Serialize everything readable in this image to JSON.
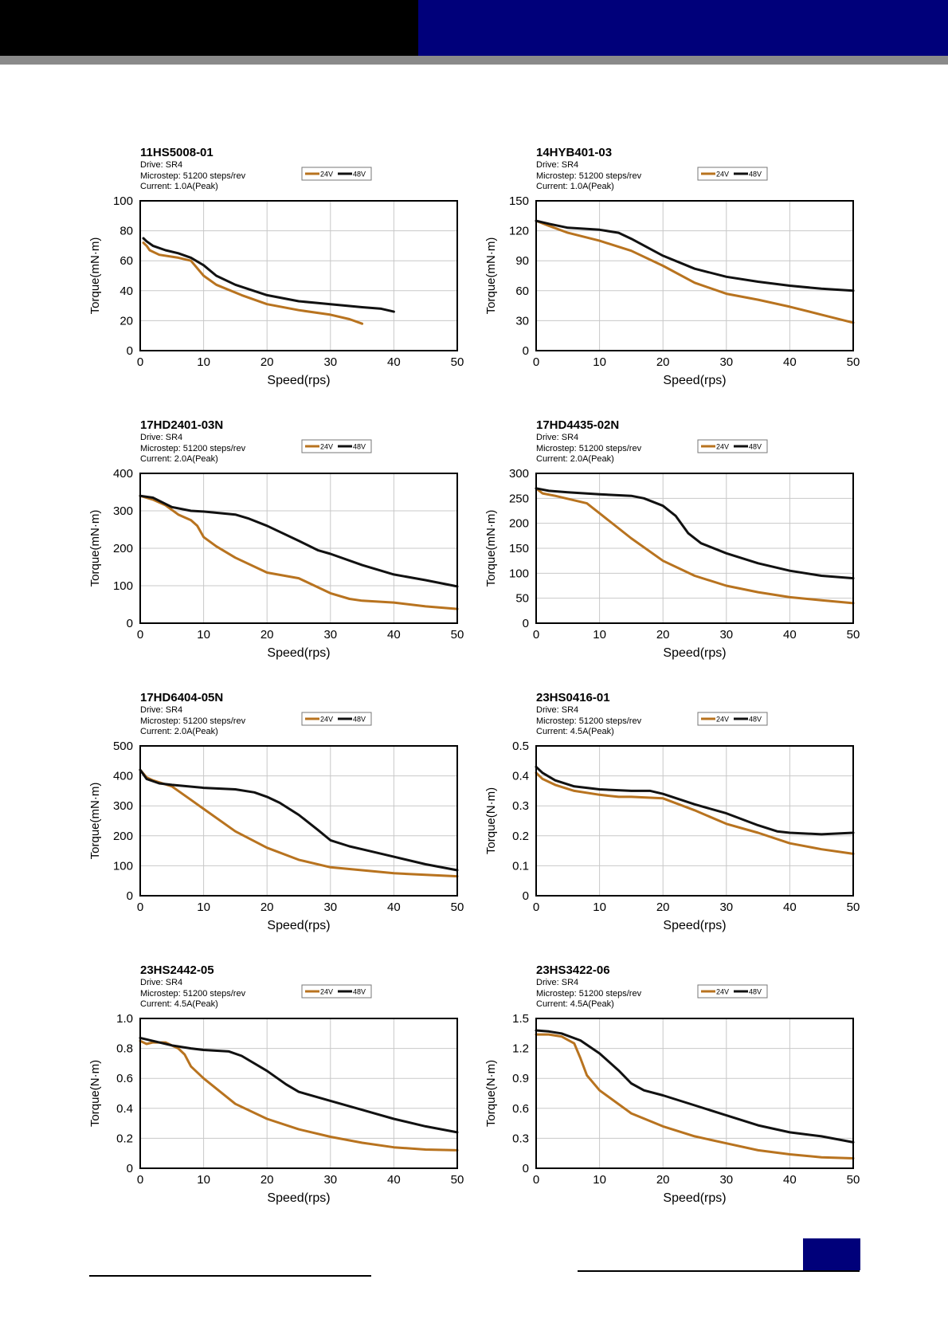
{
  "colors": {
    "v24": "#b8731f",
    "v48": "#111111",
    "grid": "#c8c8c8",
    "header_black": "#000000",
    "header_blue": "#00007a"
  },
  "legend": {
    "v24": "24V",
    "v48": "48V"
  },
  "chart_data": [
    {
      "type": "line",
      "title": "11HS5008-01",
      "drive": "Drive: SR4",
      "microstep": "Microstep: 51200 steps/rev",
      "current": "Current: 1.0A(Peak)",
      "xlabel": "Speed(rps)",
      "ylabel": "Torque(mN·m)",
      "xlim": [
        0,
        50
      ],
      "ylim": [
        0,
        100
      ],
      "xticks": [
        "0",
        "10",
        "20",
        "30",
        "40",
        "50"
      ],
      "yticks": [
        "0",
        "20",
        "40",
        "60",
        "80",
        "100"
      ],
      "series": [
        {
          "name": "24V",
          "x": [
            0.5,
            1,
            1.5,
            3,
            6,
            8,
            10,
            12,
            16,
            20,
            25,
            30,
            33,
            35
          ],
          "y": [
            72,
            70,
            67,
            64,
            62,
            60,
            50,
            44,
            37,
            31,
            27,
            24,
            21,
            18
          ]
        },
        {
          "name": "48V",
          "x": [
            0.5,
            1,
            2,
            4,
            6,
            8,
            10,
            12,
            15,
            20,
            25,
            30,
            35,
            38,
            40
          ],
          "y": [
            75,
            73,
            70,
            67,
            65,
            62,
            57,
            50,
            44,
            37,
            33,
            31,
            29,
            28,
            26
          ]
        }
      ]
    },
    {
      "type": "line",
      "title": "14HYB401-03",
      "drive": "Drive: SR4",
      "microstep": "Microstep: 51200 steps/rev",
      "current": "Current: 1.0A(Peak)",
      "xlabel": "Speed(rps)",
      "ylabel": "Torque(mN·m)",
      "xlim": [
        0,
        50
      ],
      "ylim": [
        0,
        150
      ],
      "xticks": [
        "0",
        "10",
        "20",
        "30",
        "40",
        "50"
      ],
      "yticks": [
        "0",
        "30",
        "60",
        "90",
        "120",
        "150"
      ],
      "series": [
        {
          "name": "24V",
          "x": [
            0,
            2,
            5,
            10,
            15,
            20,
            25,
            30,
            35,
            40,
            45,
            50
          ],
          "y": [
            130,
            125,
            118,
            110,
            100,
            85,
            68,
            57,
            51,
            44,
            36,
            28
          ]
        },
        {
          "name": "48V",
          "x": [
            0,
            2,
            5,
            10,
            13,
            15,
            20,
            25,
            30,
            35,
            40,
            45,
            50
          ],
          "y": [
            130,
            127,
            123,
            121,
            118,
            112,
            95,
            82,
            74,
            69,
            65,
            62,
            60
          ]
        }
      ]
    },
    {
      "type": "line",
      "title": "17HD2401-03N",
      "drive": "Drive: SR4",
      "microstep": "Microstep: 51200 steps/rev",
      "current": "Current: 2.0A(Peak)",
      "xlabel": "Speed(rps)",
      "ylabel": "Torque(mN·m)",
      "xlim": [
        0,
        50
      ],
      "ylim": [
        0,
        400
      ],
      "xticks": [
        "0",
        "10",
        "20",
        "30",
        "40",
        "50"
      ],
      "yticks": [
        "0",
        "100",
        "200",
        "300",
        "400"
      ],
      "series": [
        {
          "name": "24V",
          "x": [
            0,
            2,
            4,
            6,
            8,
            9,
            10,
            12,
            15,
            20,
            25,
            30,
            33,
            35,
            40,
            45,
            50
          ],
          "y": [
            340,
            330,
            315,
            290,
            275,
            260,
            230,
            205,
            175,
            135,
            120,
            80,
            65,
            60,
            55,
            45,
            38
          ]
        },
        {
          "name": "48V",
          "x": [
            0,
            2,
            5,
            8,
            10,
            15,
            17,
            20,
            25,
            28,
            30,
            35,
            40,
            45,
            50
          ],
          "y": [
            340,
            335,
            310,
            300,
            298,
            290,
            280,
            260,
            220,
            195,
            185,
            155,
            130,
            115,
            98
          ]
        }
      ]
    },
    {
      "type": "line",
      "title": "17HD4435-02N",
      "drive": "Drive: SR4",
      "microstep": "Microstep: 51200 steps/rev",
      "current": "Current: 2.0A(Peak)",
      "xlabel": "Speed(rps)",
      "ylabel": "Torque(mN·m)",
      "xlim": [
        0,
        50
      ],
      "ylim": [
        0,
        300
      ],
      "xticks": [
        "0",
        "10",
        "20",
        "30",
        "40",
        "50"
      ],
      "yticks": [
        "0",
        "50",
        "100",
        "150",
        "200",
        "250",
        "300"
      ],
      "series": [
        {
          "name": "24V",
          "x": [
            0,
            1,
            3,
            8,
            10,
            15,
            20,
            25,
            30,
            35,
            40,
            45,
            50
          ],
          "y": [
            270,
            260,
            255,
            240,
            220,
            170,
            125,
            95,
            75,
            62,
            52,
            46,
            40
          ]
        },
        {
          "name": "48V",
          "x": [
            0,
            2,
            5,
            10,
            15,
            17,
            20,
            22,
            24,
            26,
            30,
            35,
            40,
            45,
            50
          ],
          "y": [
            270,
            265,
            262,
            258,
            255,
            250,
            235,
            215,
            180,
            160,
            140,
            120,
            105,
            95,
            90
          ]
        }
      ]
    },
    {
      "type": "line",
      "title": "17HD6404-05N",
      "drive": "Drive: SR4",
      "microstep": "Microstep: 51200 steps/rev",
      "current": "Current: 2.0A(Peak)",
      "xlabel": "Speed(rps)",
      "ylabel": "Torque(mN·m)",
      "xlim": [
        0,
        50
      ],
      "ylim": [
        0,
        500
      ],
      "xticks": [
        "0",
        "10",
        "20",
        "30",
        "40",
        "50"
      ],
      "yticks": [
        "0",
        "100",
        "200",
        "300",
        "400",
        "500"
      ],
      "series": [
        {
          "name": "24V",
          "x": [
            0,
            1,
            2,
            5,
            8,
            10,
            15,
            20,
            25,
            30,
            35,
            40,
            45,
            50
          ],
          "y": [
            420,
            395,
            385,
            365,
            320,
            290,
            215,
            160,
            120,
            95,
            85,
            75,
            70,
            65
          ]
        },
        {
          "name": "48V",
          "x": [
            0,
            1,
            3,
            5,
            10,
            15,
            18,
            20,
            22,
            25,
            28,
            30,
            33,
            35,
            40,
            45,
            50
          ],
          "y": [
            420,
            390,
            375,
            370,
            360,
            355,
            345,
            330,
            310,
            270,
            220,
            185,
            165,
            155,
            130,
            105,
            85
          ]
        }
      ]
    },
    {
      "type": "line",
      "title": "23HS0416-01",
      "drive": "Drive: SR4",
      "microstep": "Microstep: 51200 steps/rev",
      "current": "Current: 4.5A(Peak)",
      "xlabel": "Speed(rps)",
      "ylabel": "Torque(N·m)",
      "xlim": [
        0,
        50
      ],
      "ylim": [
        0,
        0.5
      ],
      "xticks": [
        "0",
        "10",
        "20",
        "30",
        "40",
        "50"
      ],
      "yticks": [
        "0",
        "0.1",
        "0.2",
        "0.3",
        "0.4",
        "0.5"
      ],
      "series": [
        {
          "name": "24V",
          "x": [
            0,
            1,
            3,
            6,
            10,
            13,
            15,
            20,
            25,
            30,
            35,
            40,
            45,
            50
          ],
          "y": [
            0.41,
            0.39,
            0.37,
            0.35,
            0.337,
            0.33,
            0.33,
            0.325,
            0.285,
            0.24,
            0.21,
            0.175,
            0.155,
            0.14
          ]
        },
        {
          "name": "48V",
          "x": [
            0,
            1,
            3,
            6,
            10,
            15,
            18,
            20,
            25,
            30,
            35,
            38,
            40,
            45,
            50
          ],
          "y": [
            0.43,
            0.41,
            0.385,
            0.365,
            0.355,
            0.35,
            0.35,
            0.34,
            0.305,
            0.275,
            0.235,
            0.215,
            0.21,
            0.205,
            0.21
          ]
        }
      ]
    },
    {
      "type": "line",
      "title": "23HS2442-05",
      "drive": "Drive: SR4",
      "microstep": "Microstep: 51200 steps/rev",
      "current": "Current: 4.5A(Peak)",
      "xlabel": "Speed(rps)",
      "ylabel": "Torque(N·m)",
      "xlim": [
        0,
        50
      ],
      "ylim": [
        0,
        1.0
      ],
      "xticks": [
        "0",
        "10",
        "20",
        "30",
        "40",
        "50"
      ],
      "yticks": [
        "0",
        "0.2",
        "0.4",
        "0.6",
        "0.8",
        "1.0"
      ],
      "series": [
        {
          "name": "24V",
          "x": [
            0,
            1,
            2,
            4,
            6,
            7,
            8,
            10,
            15,
            20,
            25,
            30,
            35,
            40,
            45,
            50
          ],
          "y": [
            0.85,
            0.83,
            0.84,
            0.84,
            0.8,
            0.76,
            0.68,
            0.6,
            0.43,
            0.33,
            0.26,
            0.21,
            0.17,
            0.14,
            0.125,
            0.12
          ]
        },
        {
          "name": "48V",
          "x": [
            0,
            2,
            5,
            8,
            10,
            14,
            16,
            20,
            23,
            25,
            30,
            35,
            40,
            45,
            50
          ],
          "y": [
            0.87,
            0.85,
            0.82,
            0.8,
            0.79,
            0.78,
            0.75,
            0.65,
            0.56,
            0.51,
            0.45,
            0.39,
            0.33,
            0.28,
            0.24
          ]
        }
      ]
    },
    {
      "type": "line",
      "title": "23HS3422-06",
      "drive": "Drive: SR4",
      "microstep": "Microstep: 51200 steps/rev",
      "current": "Current: 4.5A(Peak)",
      "xlabel": "Speed(rps)",
      "ylabel": "Torque(N·m)",
      "xlim": [
        0,
        50
      ],
      "ylim": [
        0,
        1.5
      ],
      "xticks": [
        "0",
        "10",
        "20",
        "30",
        "40",
        "50"
      ],
      "yticks": [
        "0",
        "0.3",
        "0.6",
        "0.9",
        "1.2",
        "1.5"
      ],
      "series": [
        {
          "name": "24V",
          "x": [
            0,
            2,
            4,
            6,
            7,
            8,
            10,
            15,
            20,
            25,
            30,
            35,
            40,
            45,
            50
          ],
          "y": [
            1.34,
            1.34,
            1.32,
            1.25,
            1.1,
            0.93,
            0.78,
            0.55,
            0.42,
            0.32,
            0.25,
            0.18,
            0.14,
            0.11,
            0.1
          ]
        },
        {
          "name": "48V",
          "x": [
            0,
            2,
            4,
            7,
            10,
            13,
            15,
            17,
            20,
            25,
            30,
            35,
            40,
            45,
            50
          ],
          "y": [
            1.38,
            1.37,
            1.35,
            1.28,
            1.15,
            0.98,
            0.85,
            0.78,
            0.73,
            0.63,
            0.53,
            0.43,
            0.36,
            0.32,
            0.26
          ]
        }
      ]
    }
  ]
}
